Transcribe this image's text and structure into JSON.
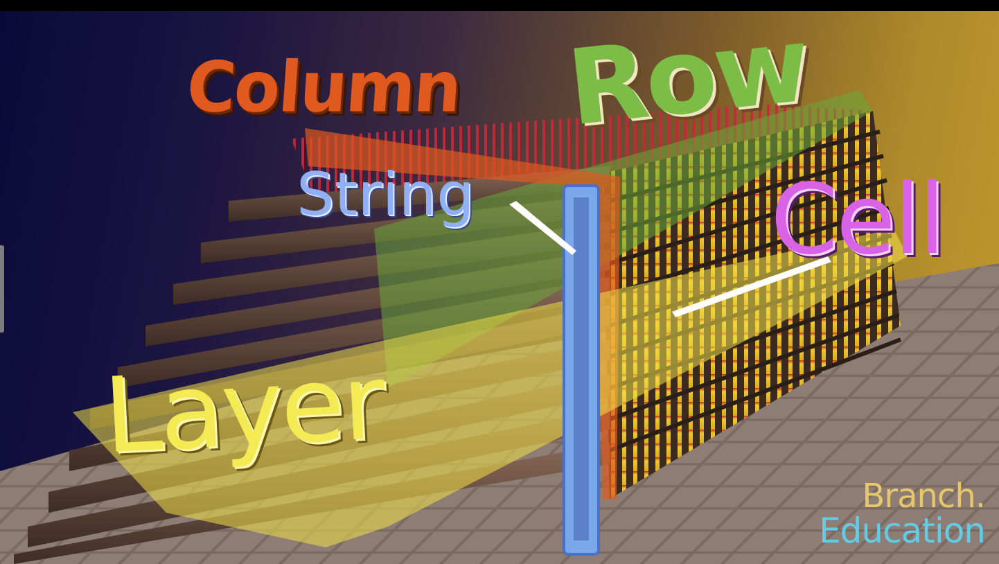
{
  "labels": {
    "column": "Column",
    "row": "Row",
    "string": "String",
    "cell": "Cell",
    "layer": "Layer"
  },
  "logo": {
    "line1": "Branch.",
    "line2": "Education"
  },
  "colors": {
    "column": "#e0591f",
    "row": "#7bbd47",
    "string": "#8fb0f5",
    "cell": "#d863e6",
    "layer": "#f4ea54",
    "logo_line1": "#e6c86a",
    "logo_line2": "#62cbe6"
  }
}
